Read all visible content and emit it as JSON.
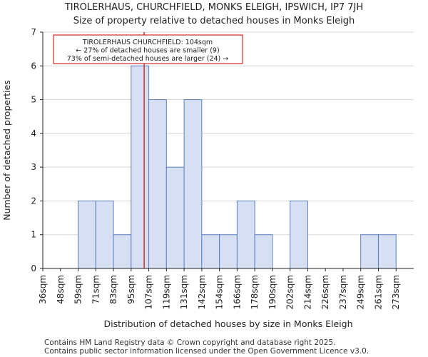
{
  "chart_data": {
    "type": "bar",
    "title": "TIROLERHAUS, CHURCHFIELD, MONKS ELEIGH, IPSWICH, IP7 7JH",
    "subtitle": "Size of property relative to detached houses in Monks Eleigh",
    "xlabel": "Distribution of detached houses by size in Monks Eleigh",
    "ylabel": "Number of detached properties",
    "categories": [
      "36sqm",
      "48sqm",
      "59sqm",
      "71sqm",
      "83sqm",
      "95sqm",
      "107sqm",
      "119sqm",
      "131sqm",
      "142sqm",
      "154sqm",
      "166sqm",
      "178sqm",
      "190sqm",
      "202sqm",
      "214sqm",
      "226sqm",
      "237sqm",
      "249sqm",
      "261sqm",
      "273sqm"
    ],
    "values": [
      0,
      0,
      2,
      2,
      1,
      6,
      5,
      3,
      5,
      1,
      1,
      2,
      1,
      0,
      2,
      0,
      0,
      0,
      1,
      1,
      0
    ],
    "ylim": [
      0,
      7
    ],
    "yticks": [
      0,
      1,
      2,
      3,
      4,
      5,
      6,
      7
    ],
    "grid": true,
    "bar_color": "#d6e0f2",
    "bar_edge_color": "#5b7fc7",
    "marker": {
      "value": 104,
      "color": "#cc0000",
      "annotation": [
        "TIROLERHAUS CHURCHFIELD: 104sqm",
        "← 27% of detached houses are smaller (9)",
        "73% of semi-detached houses are larger (24) →"
      ]
    }
  },
  "footer": {
    "line1": "Contains HM Land Registry data © Crown copyright and database right 2025.",
    "line2": "Contains public sector information licensed under the Open Government Licence v3.0."
  }
}
